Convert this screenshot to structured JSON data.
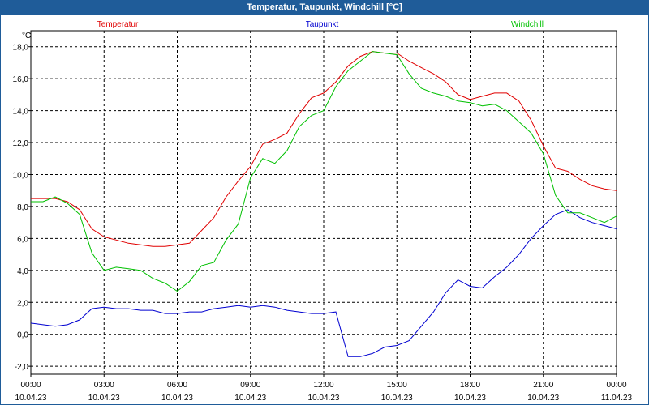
{
  "window": {
    "title": "Temperatur, Taupunkt, Windchill [°C]"
  },
  "chart_data": {
    "type": "line",
    "ylabel": "°C",
    "ylim": [
      -2.5,
      19
    ],
    "yticks": [
      -2,
      0,
      2,
      4,
      6,
      8,
      10,
      12,
      14,
      16,
      18
    ],
    "ytick_labels": [
      "-2,0",
      "0,0",
      "2,0",
      "4,0",
      "6,0",
      "8,0",
      "10,0",
      "12,0",
      "14,0",
      "16,0",
      "18,0"
    ],
    "xlim": [
      0,
      24
    ],
    "xticks": [
      0,
      3,
      6,
      9,
      12,
      15,
      18,
      21,
      24
    ],
    "xtick_labels": [
      [
        "00:00",
        "10.04.23"
      ],
      [
        "03:00",
        "10.04.23"
      ],
      [
        "06:00",
        "10.04.23"
      ],
      [
        "09:00",
        "10.04.23"
      ],
      [
        "12:00",
        "10.04.23"
      ],
      [
        "15:00",
        "10.04.23"
      ],
      [
        "18:00",
        "10.04.23"
      ],
      [
        "21:00",
        "10.04.23"
      ],
      [
        "00:00",
        "11.04.23"
      ]
    ],
    "grid": true,
    "series": [
      {
        "name": "Temperatur",
        "color": "#e00000",
        "x": [
          0,
          0.5,
          1,
          1.5,
          2,
          2.5,
          3,
          3.5,
          4,
          4.5,
          5,
          5.5,
          6,
          6.5,
          7,
          7.5,
          8,
          8.5,
          9,
          9.5,
          10,
          10.5,
          11,
          11.5,
          12,
          12.5,
          13,
          13.5,
          14,
          14.5,
          15,
          15.5,
          16,
          16.5,
          17,
          17.5,
          18,
          18.5,
          19,
          19.5,
          20,
          20.5,
          21,
          21.5,
          22,
          22.5,
          23,
          23.5,
          24
        ],
        "y": [
          8.5,
          8.5,
          8.5,
          8.3,
          7.8,
          6.6,
          6.1,
          5.9,
          5.7,
          5.6,
          5.5,
          5.5,
          5.6,
          5.7,
          6.5,
          7.3,
          8.6,
          9.6,
          10.5,
          11.9,
          12.2,
          12.6,
          13.8,
          14.8,
          15.1,
          15.8,
          16.8,
          17.4,
          17.7,
          17.6,
          17.6,
          17.1,
          16.7,
          16.3,
          15.8,
          15.0,
          14.7,
          14.9,
          15.1,
          15.1,
          14.6,
          13.4,
          11.8,
          10.4,
          10.2,
          9.7,
          9.3,
          9.1,
          9.0
        ]
      },
      {
        "name": "Taupunkt",
        "color": "#0000d0",
        "x": [
          0,
          0.5,
          1,
          1.5,
          2,
          2.5,
          3,
          3.5,
          4,
          4.5,
          5,
          5.5,
          6,
          6.5,
          7,
          7.5,
          8,
          8.5,
          9,
          9.5,
          10,
          10.5,
          11,
          11.5,
          12,
          12.5,
          13,
          13.5,
          14,
          14.5,
          15,
          15.5,
          16,
          16.5,
          17,
          17.5,
          18,
          18.5,
          19,
          19.5,
          20,
          20.5,
          21,
          21.5,
          22,
          22.5,
          23,
          23.5,
          24
        ],
        "y": [
          0.7,
          0.6,
          0.5,
          0.6,
          0.9,
          1.6,
          1.7,
          1.6,
          1.6,
          1.5,
          1.5,
          1.3,
          1.3,
          1.4,
          1.4,
          1.6,
          1.7,
          1.8,
          1.7,
          1.8,
          1.7,
          1.5,
          1.4,
          1.3,
          1.3,
          1.4,
          -1.4,
          -1.4,
          -1.2,
          -0.8,
          -0.7,
          -0.4,
          0.5,
          1.4,
          2.6,
          3.4,
          3.0,
          2.9,
          3.6,
          4.2,
          5.0,
          6.0,
          6.8,
          7.5,
          7.8,
          7.3,
          7.0,
          6.8,
          6.6
        ]
      },
      {
        "name": "Windchill",
        "color": "#00c000",
        "x": [
          0,
          0.5,
          1,
          1.5,
          2,
          2.5,
          3,
          3.5,
          4,
          4.5,
          5,
          5.5,
          6,
          6.5,
          7,
          7.5,
          8,
          8.5,
          9,
          9.5,
          10,
          10.5,
          11,
          11.5,
          12,
          12.5,
          13,
          13.5,
          14,
          14.5,
          15,
          15.5,
          16,
          16.5,
          17,
          17.5,
          18,
          18.5,
          19,
          19.5,
          20,
          20.5,
          21,
          21.5,
          22,
          22.5,
          23,
          23.5,
          24
        ],
        "y": [
          8.3,
          8.3,
          8.6,
          8.2,
          7.5,
          5.1,
          4.0,
          4.2,
          4.1,
          4.0,
          3.5,
          3.2,
          2.7,
          3.3,
          4.3,
          4.5,
          5.9,
          6.9,
          9.8,
          11.0,
          10.7,
          11.5,
          13.0,
          13.7,
          14.0,
          15.5,
          16.5,
          17.1,
          17.7,
          17.6,
          17.5,
          16.3,
          15.4,
          15.1,
          14.9,
          14.6,
          14.5,
          14.3,
          14.4,
          14.0,
          13.3,
          12.6,
          11.3,
          8.7,
          7.6,
          7.6,
          7.3,
          7.0,
          7.4
        ]
      }
    ]
  }
}
